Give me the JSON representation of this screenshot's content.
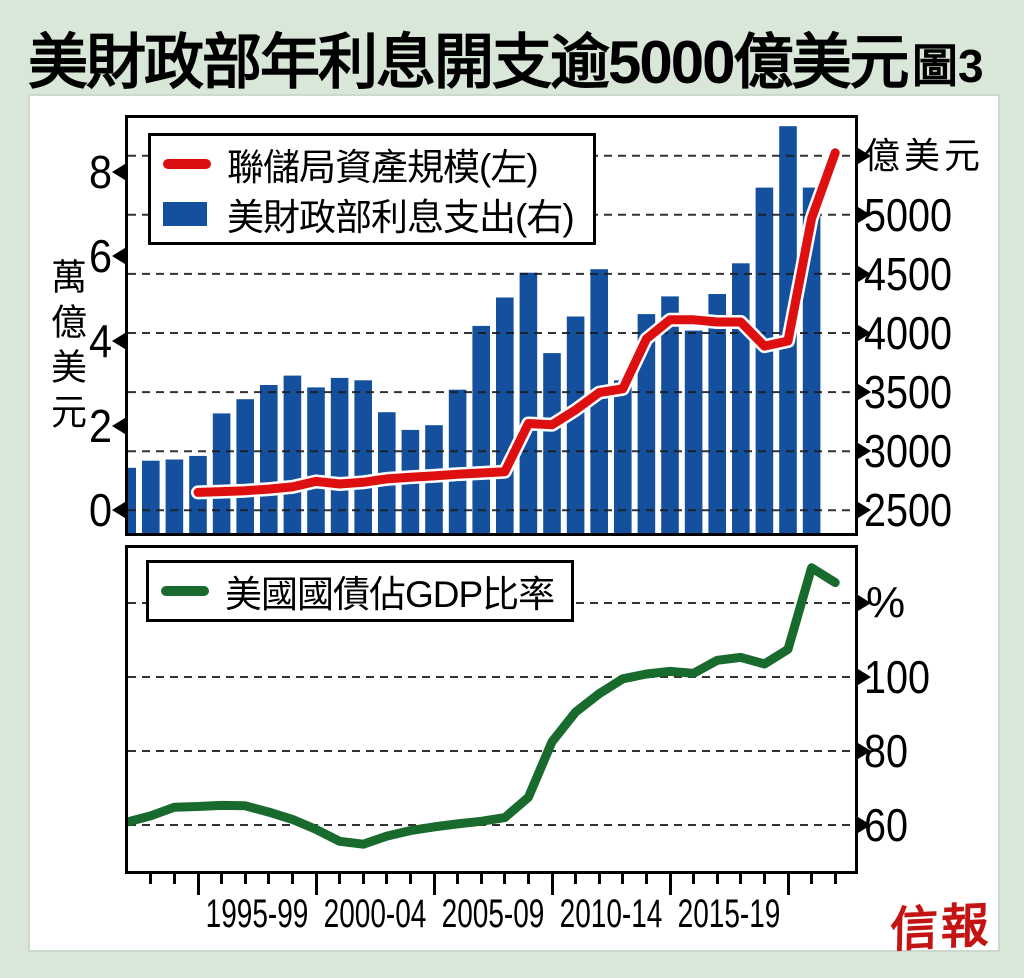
{
  "page": {
    "title": "美財政部年利息開支逾5000億美元",
    "figure_label": "圖3",
    "logo": "信報",
    "colors": {
      "background": "#d9e7d9",
      "panel": "#ffffff",
      "bar_blue": "#14509e",
      "fed_red": "#de0f10",
      "debt_green": "#186b2d",
      "logo_red": "#c41313",
      "gridline": "#1c1c1c"
    }
  },
  "x_axis": {
    "range_years": [
      1991.03,
      2021.84
    ],
    "tick_years": [
      1992,
      1993,
      1994,
      1995,
      1996,
      1997,
      1998,
      1999,
      2000,
      2001,
      2002,
      2003,
      2004,
      2005,
      2006,
      2007,
      2008,
      2009,
      2010,
      2011,
      2012,
      2013,
      2014,
      2015,
      2016,
      2017,
      2018,
      2019,
      2020,
      2021
    ],
    "major_tick_years": [
      1994,
      1999,
      2004,
      2009,
      2014,
      2019
    ],
    "labels": [
      {
        "text": "1995-99",
        "center_year": 1996.5
      },
      {
        "text": "2000-04",
        "center_year": 2001.5
      },
      {
        "text": "2005-09",
        "center_year": 2006.5
      },
      {
        "text": "2010-14",
        "center_year": 2011.5
      },
      {
        "text": "2015-19",
        "center_year": 2016.5
      }
    ]
  },
  "chart_data": [
    {
      "id": "fed-assets-vs-interest",
      "type": "bar+line",
      "legend": [
        {
          "label": "聯儲局資產規模(左)",
          "marker": "line",
          "color": "#de0f10"
        },
        {
          "label": "美財政部利息支出(右)",
          "marker": "square",
          "color": "#14509e"
        }
      ],
      "left_axis": {
        "unit": "萬億美元",
        "ticks": [
          0,
          2,
          4,
          6,
          8
        ],
        "ylim": [
          -0.54,
          9.28
        ]
      },
      "right_axis": {
        "unit": "億美元",
        "ticks": [
          2500,
          3000,
          3500,
          4000,
          4500,
          5000
        ],
        "unit_line_value": 5500,
        "ylim": [
          2308,
          5819
        ]
      },
      "bars": {
        "name": "美財政部利息支出",
        "axis": "right",
        "years": [
          1991,
          1992,
          1993,
          1994,
          1995,
          1996,
          1997,
          1998,
          1999,
          2000,
          2001,
          2002,
          2003,
          2004,
          2005,
          2006,
          2007,
          2008,
          2009,
          2010,
          2011,
          2012,
          2013,
          2014,
          2015,
          2016,
          2017,
          2018,
          2019,
          2020
        ],
        "values": [
          2860,
          2920,
          2930,
          2960,
          3320,
          3440,
          3560,
          3640,
          3540,
          3620,
          3600,
          3330,
          3180,
          3220,
          3520,
          4060,
          4300,
          4510,
          3830,
          4140,
          4540,
          3600,
          4160,
          4310,
          4020,
          4330,
          4590,
          5230,
          5750,
          5230
        ]
      },
      "line": {
        "name": "聯儲局資產規模",
        "axis": "left",
        "years": [
          1994,
          1995,
          1996,
          1997,
          1998,
          1999,
          2000,
          2001,
          2002,
          2003,
          2004,
          2005,
          2006,
          2007,
          2008,
          2009,
          2010,
          2011,
          2012,
          2013,
          2014,
          2015,
          2016,
          2017,
          2018,
          2019,
          2020,
          2021
        ],
        "values": [
          0.42,
          0.44,
          0.46,
          0.5,
          0.55,
          0.68,
          0.62,
          0.66,
          0.74,
          0.78,
          0.81,
          0.85,
          0.88,
          0.91,
          2.05,
          2.02,
          2.37,
          2.78,
          2.87,
          4.05,
          4.5,
          4.5,
          4.45,
          4.45,
          3.88,
          4.0,
          6.9,
          8.45
        ]
      }
    },
    {
      "id": "debt-to-gdp",
      "type": "line",
      "legend": [
        {
          "label": "美國國債佔GDP比率",
          "marker": "line",
          "color": "#186b2d"
        }
      ],
      "right_axis": {
        "unit": "%",
        "ticks": [
          60,
          80,
          100
        ],
        "unit_line_value": 120,
        "ylim": [
          47.6,
          134.9
        ]
      },
      "line": {
        "name": "美國國債佔GDP比率",
        "years": [
          1991,
          1992,
          1993,
          1994,
          1995,
          1996,
          1997,
          1998,
          1999,
          2000,
          2001,
          2002,
          2003,
          2004,
          2005,
          2006,
          2007,
          2008,
          2009,
          2010,
          2011,
          2012,
          2013,
          2014,
          2015,
          2016,
          2017,
          2018,
          2019,
          2020,
          2021
        ],
        "values": [
          60.8,
          62.5,
          64.8,
          65.0,
          65.3,
          65.2,
          63.5,
          61.5,
          58.8,
          55.6,
          54.8,
          57.0,
          58.5,
          59.5,
          60.3,
          61.0,
          62.0,
          67.5,
          82.5,
          90.5,
          95.5,
          99.5,
          100.8,
          101.5,
          101.0,
          104.5,
          105.3,
          103.5,
          107.5,
          129.5,
          125.5
        ]
      }
    }
  ]
}
